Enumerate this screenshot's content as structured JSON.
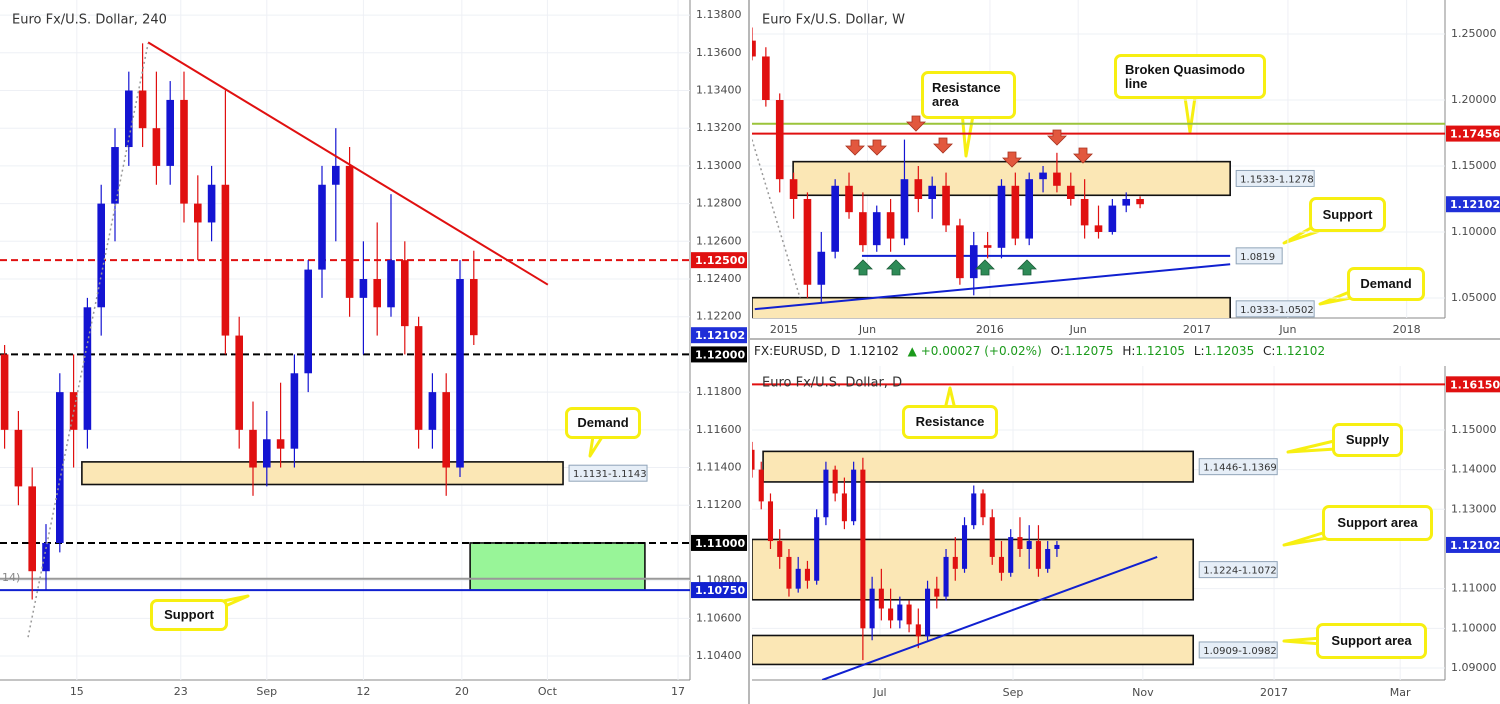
{
  "chart_data": [
    {
      "type": "candlestick",
      "title": "Euro Fx/U.S. Dollar, 240",
      "indicator_label": "14)",
      "up_color": "#1414d2",
      "down_color": "#e01010",
      "grid": true,
      "xlim": [
        0,
        150
      ],
      "ylim": [
        1.10273,
        1.1388
      ],
      "xticks": [
        {
          "value": 16.7,
          "label": "15"
        },
        {
          "value": 39.3,
          "label": "23"
        },
        {
          "value": 58,
          "label": "Sep"
        },
        {
          "value": 79,
          "label": "12"
        },
        {
          "value": 100.4,
          "label": "20"
        },
        {
          "value": 119,
          "label": "Oct"
        },
        {
          "value": 147.4,
          "label": "17"
        }
      ],
      "yticks": [
        {
          "value": 1.138,
          "label": "1.13800"
        },
        {
          "value": 1.136,
          "label": "1.13600"
        },
        {
          "value": 1.134,
          "label": "1.13400"
        },
        {
          "value": 1.132,
          "label": "1.13200"
        },
        {
          "value": 1.13,
          "label": "1.13000"
        },
        {
          "value": 1.128,
          "label": "1.12800"
        },
        {
          "value": 1.126,
          "label": "1.12600"
        },
        {
          "value": 1.124,
          "label": "1.12400"
        },
        {
          "value": 1.122,
          "label": "1.12200"
        },
        {
          "value": 1.118,
          "label": "1.11800"
        },
        {
          "value": 1.116,
          "label": "1.11600"
        },
        {
          "value": 1.114,
          "label": "1.11400"
        },
        {
          "value": 1.112,
          "label": "1.11200"
        },
        {
          "value": 1.108,
          "label": "1.10800"
        },
        {
          "value": 1.106,
          "label": "1.10600"
        },
        {
          "value": 1.104,
          "label": "1.10400"
        }
      ],
      "x": [
        1,
        4,
        7,
        10,
        13,
        16,
        19,
        22,
        25,
        28,
        31,
        34,
        37,
        40,
        43,
        46,
        49,
        52,
        55,
        58,
        61,
        64,
        67,
        70,
        73,
        76,
        79,
        82,
        85,
        88,
        91,
        94,
        97,
        100,
        103
      ],
      "open": [
        1.12,
        1.116,
        1.113,
        1.1085,
        1.11,
        1.118,
        1.116,
        1.1225,
        1.128,
        1.131,
        1.134,
        1.132,
        1.13,
        1.1335,
        1.128,
        1.127,
        1.129,
        1.121,
        1.116,
        1.114,
        1.1155,
        1.115,
        1.119,
        1.1245,
        1.129,
        1.13,
        1.123,
        1.124,
        1.1225,
        1.125,
        1.1215,
        1.116,
        1.118,
        1.114,
        1.124
      ],
      "high": [
        1.1205,
        1.117,
        1.114,
        1.111,
        1.119,
        1.12,
        1.123,
        1.129,
        1.132,
        1.135,
        1.1365,
        1.135,
        1.1345,
        1.135,
        1.1295,
        1.13,
        1.134,
        1.122,
        1.1175,
        1.117,
        1.1185,
        1.12,
        1.125,
        1.13,
        1.132,
        1.131,
        1.126,
        1.127,
        1.1285,
        1.126,
        1.122,
        1.119,
        1.119,
        1.125,
        1.1255
      ],
      "low": [
        1.115,
        1.112,
        1.107,
        1.1075,
        1.1095,
        1.114,
        1.115,
        1.121,
        1.126,
        1.13,
        1.131,
        1.129,
        1.129,
        1.127,
        1.125,
        1.126,
        1.12,
        1.115,
        1.1125,
        1.113,
        1.114,
        1.114,
        1.118,
        1.123,
        1.126,
        1.122,
        1.12,
        1.121,
        1.122,
        1.12,
        1.115,
        1.115,
        1.1125,
        1.1135,
        1.1205
      ],
      "close": [
        1.116,
        1.113,
        1.1085,
        1.11,
        1.118,
        1.116,
        1.1225,
        1.128,
        1.131,
        1.134,
        1.132,
        1.13,
        1.1335,
        1.128,
        1.127,
        1.129,
        1.121,
        1.116,
        1.114,
        1.1155,
        1.115,
        1.119,
        1.1245,
        1.129,
        1.13,
        1.123,
        1.124,
        1.1225,
        1.125,
        1.1215,
        1.116,
        1.118,
        1.114,
        1.124,
        1.12102
      ],
      "last_price": 1.12102,
      "last_price_color": "#1f2fd8",
      "levels": [
        {
          "value": 1.125,
          "label": "1.12500",
          "color": "#e01010",
          "style": "dashed"
        },
        {
          "value": 1.12,
          "label": "1.12000",
          "color": "#000000",
          "style": "dashed"
        },
        {
          "value": 1.11,
          "label": "1.11000",
          "color": "#000000",
          "style": "dashed"
        },
        {
          "value": 1.1081,
          "color": "#999999",
          "style": "solid"
        },
        {
          "value": 1.1075,
          "label": "1.10750",
          "color": "#1020d0",
          "style": "solid"
        }
      ],
      "zones": [
        {
          "label": "1.1131-1.1143",
          "low": 1.1131,
          "high": 1.1143,
          "x": [
            17.8,
            122.4
          ],
          "color": "#fbe7b5"
        },
        {
          "low": 1.1075,
          "high": 1.11,
          "x": [
            102.2,
            140.2
          ],
          "color": "#98f598"
        }
      ],
      "trendlines": [
        {
          "x": [
            32.2,
            119.1
          ],
          "y": [
            1.13655,
            1.1237
          ],
          "color": "#e01010",
          "style": "solid"
        },
        {
          "x": [
            6.1,
            32.2
          ],
          "y": [
            1.105,
            1.1365
          ],
          "color": "#999999",
          "style": "dotted"
        }
      ],
      "annotations": [
        "Demand",
        "Support"
      ]
    },
    {
      "type": "candlestick",
      "title": "Euro Fx/U.S. Dollar, W",
      "up_color": "#1414d2",
      "down_color": "#e01010",
      "grid": true,
      "xlim": [
        0,
        150
      ],
      "ylim": [
        1.0348,
        1.2758
      ],
      "xticks": [
        {
          "value": 6.9,
          "label": "2015"
        },
        {
          "value": 25,
          "label": "Jun"
        },
        {
          "value": 51.5,
          "label": "2016"
        },
        {
          "value": 70.6,
          "label": "Jun"
        },
        {
          "value": 96.3,
          "label": "2017"
        },
        {
          "value": 116,
          "label": "Jun"
        },
        {
          "value": 141.7,
          "label": "2018"
        }
      ],
      "yticks": [
        {
          "value": 1.25,
          "label": "1.25000"
        },
        {
          "value": 1.2,
          "label": "1.20000"
        },
        {
          "value": 1.15,
          "label": "1.15000"
        },
        {
          "value": 1.1,
          "label": "1.10000"
        },
        {
          "value": 1.05,
          "label": "1.05000"
        }
      ],
      "x": [
        0,
        3,
        6,
        9,
        12,
        15,
        18,
        21,
        24,
        27,
        30,
        33,
        36,
        39,
        42,
        45,
        48,
        51,
        54,
        57,
        60,
        63,
        66,
        69,
        72,
        75,
        78,
        81,
        84
      ],
      "open": [
        1.245,
        1.233,
        1.2,
        1.14,
        1.125,
        1.06,
        1.085,
        1.135,
        1.115,
        1.09,
        1.115,
        1.095,
        1.14,
        1.125,
        1.135,
        1.105,
        1.065,
        1.09,
        1.088,
        1.135,
        1.095,
        1.14,
        1.145,
        1.135,
        1.125,
        1.105,
        1.1,
        1.12,
        1.125
      ],
      "high": [
        1.255,
        1.24,
        1.205,
        1.145,
        1.13,
        1.1,
        1.14,
        1.145,
        1.13,
        1.12,
        1.125,
        1.17,
        1.15,
        1.142,
        1.145,
        1.11,
        1.1,
        1.1,
        1.14,
        1.145,
        1.145,
        1.15,
        1.16,
        1.145,
        1.14,
        1.12,
        1.125,
        1.13,
        1.127
      ],
      "low": [
        1.23,
        1.195,
        1.13,
        1.11,
        1.05,
        1.046,
        1.08,
        1.11,
        1.085,
        1.085,
        1.085,
        1.09,
        1.115,
        1.11,
        1.1,
        1.06,
        1.052,
        1.08,
        1.08,
        1.09,
        1.09,
        1.13,
        1.13,
        1.12,
        1.095,
        1.095,
        1.098,
        1.115,
        1.118
      ],
      "close": [
        1.233,
        1.2,
        1.14,
        1.125,
        1.06,
        1.085,
        1.135,
        1.115,
        1.09,
        1.115,
        1.095,
        1.14,
        1.125,
        1.135,
        1.105,
        1.065,
        1.09,
        1.088,
        1.135,
        1.095,
        1.14,
        1.145,
        1.135,
        1.125,
        1.105,
        1.1,
        1.12,
        1.125,
        1.12102
      ],
      "last_price": 1.12102,
      "last_price_color": "#1f2fd8",
      "levels": [
        {
          "value": 1.182,
          "color": "#9bc43a",
          "style": "solid"
        },
        {
          "value": 1.17456,
          "label": "1.17456",
          "color": "#e01010",
          "style": "solid"
        },
        {
          "value": 1.0819,
          "tag": "1.0819",
          "x": [
            23.8,
            103.5
          ],
          "color": "#1020d0",
          "style": "solid"
        }
      ],
      "zones": [
        {
          "label": "1.1533-1.1278",
          "high": 1.1533,
          "low": 1.1278,
          "x": [
            8.9,
            103.5
          ],
          "color": "#fbe7b5"
        },
        {
          "label": "1.0333-1.0502",
          "low": 1.0333,
          "high": 1.0502,
          "x": [
            0,
            103.5
          ],
          "color": "#fbe7b5"
        }
      ],
      "trendlines": [
        {
          "x": [
            0.6,
            103.5
          ],
          "y": [
            1.0415,
            1.0755
          ],
          "color": "#1020d0",
          "style": "solid"
        },
        {
          "x": [
            0,
            10.4
          ],
          "y": [
            1.17,
            1.05
          ],
          "color": "#999999",
          "style": "dotted"
        }
      ],
      "annotations": [
        "Resistance area",
        "Broken Quasimodo line",
        "Support",
        "Demand"
      ]
    },
    {
      "type": "candlestick",
      "title": "Euro Fx/U.S. Dollar, D",
      "header": {
        "symbol": "FX:EURUSD, D",
        "last": 1.12102,
        "change": "▲ +0.00027 (+0.02%)",
        "open_label": "O:",
        "open": 1.12075,
        "high_label": "H:",
        "high": 1.12105,
        "low_label": "L:",
        "low": 1.12035,
        "close_label": "C:",
        "close": 1.12102
      },
      "up_color": "#1414d2",
      "down_color": "#e01010",
      "grid": true,
      "xlim": [
        0,
        150
      ],
      "ylim": [
        1.08698,
        1.16612
      ],
      "xticks": [
        {
          "value": 27.7,
          "label": "Jul"
        },
        {
          "value": 56.5,
          "label": "Sep"
        },
        {
          "value": 84.6,
          "label": "Nov"
        },
        {
          "value": 113,
          "label": "2017"
        },
        {
          "value": 140.3,
          "label": "Mar"
        }
      ],
      "yticks": [
        {
          "value": 1.15,
          "label": "1.15000"
        },
        {
          "value": 1.14,
          "label": "1.14000"
        },
        {
          "value": 1.13,
          "label": "1.13000"
        },
        {
          "value": 1.11,
          "label": "1.11000"
        },
        {
          "value": 1.1,
          "label": "1.10000"
        },
        {
          "value": 1.09,
          "label": "1.09000"
        }
      ],
      "x": [
        0,
        2,
        4,
        6,
        8,
        10,
        12,
        14,
        16,
        18,
        20,
        22,
        24,
        26,
        28,
        30,
        32,
        34,
        36,
        38,
        40,
        42,
        44,
        46,
        48,
        50,
        52,
        54,
        56,
        58,
        60,
        62,
        64,
        66
      ],
      "open": [
        1.145,
        1.14,
        1.132,
        1.122,
        1.118,
        1.11,
        1.115,
        1.112,
        1.128,
        1.14,
        1.134,
        1.127,
        1.14,
        1.1,
        1.11,
        1.105,
        1.102,
        1.106,
        1.101,
        1.098,
        1.11,
        1.108,
        1.118,
        1.115,
        1.126,
        1.134,
        1.128,
        1.118,
        1.114,
        1.123,
        1.12,
        1.122,
        1.115,
        1.12
      ],
      "high": [
        1.147,
        1.142,
        1.134,
        1.125,
        1.12,
        1.118,
        1.117,
        1.13,
        1.142,
        1.141,
        1.138,
        1.142,
        1.143,
        1.113,
        1.115,
        1.11,
        1.108,
        1.107,
        1.105,
        1.112,
        1.113,
        1.12,
        1.123,
        1.128,
        1.136,
        1.135,
        1.13,
        1.122,
        1.125,
        1.128,
        1.126,
        1.126,
        1.122,
        1.122
      ],
      "low": [
        1.138,
        1.13,
        1.12,
        1.115,
        1.108,
        1.109,
        1.11,
        1.111,
        1.126,
        1.132,
        1.125,
        1.126,
        1.092,
        1.097,
        1.102,
        1.1,
        1.1,
        1.099,
        1.095,
        1.097,
        1.105,
        1.107,
        1.112,
        1.114,
        1.125,
        1.126,
        1.116,
        1.112,
        1.113,
        1.118,
        1.115,
        1.113,
        1.114,
        1.118
      ],
      "close": [
        1.14,
        1.132,
        1.122,
        1.118,
        1.11,
        1.115,
        1.112,
        1.128,
        1.14,
        1.134,
        1.127,
        1.14,
        1.1,
        1.11,
        1.105,
        1.102,
        1.106,
        1.101,
        1.098,
        1.11,
        1.108,
        1.118,
        1.115,
        1.126,
        1.134,
        1.128,
        1.118,
        1.114,
        1.123,
        1.12,
        1.122,
        1.115,
        1.12,
        1.12102
      ],
      "last_price": 1.12102,
      "last_price_color": "#1f2fd8",
      "levels": [
        {
          "value": 1.1615,
          "label": "1.16150",
          "color": "#e01010",
          "style": "solid"
        }
      ],
      "zones": [
        {
          "label": "1.1446-1.1369",
          "high": 1.1446,
          "low": 1.1369,
          "x": [
            2.4,
            95.5
          ],
          "color": "#fbe7b5"
        },
        {
          "label": "1.1224-1.1072",
          "high": 1.1224,
          "low": 1.1072,
          "x": [
            0,
            95.5
          ],
          "color": "#fbe7b5"
        },
        {
          "label": "1.0909-1.0982",
          "low": 1.0909,
          "high": 1.0982,
          "x": [
            0,
            95.5
          ],
          "color": "#fbe7b5"
        }
      ],
      "trendlines": [
        {
          "x": [
            15.2,
            87.7
          ],
          "y": [
            1.08698,
            1.118
          ],
          "color": "#1020d0",
          "style": "solid"
        }
      ],
      "annotations": [
        "Resistance",
        "Supply",
        "Support area",
        "Support area"
      ]
    }
  ]
}
